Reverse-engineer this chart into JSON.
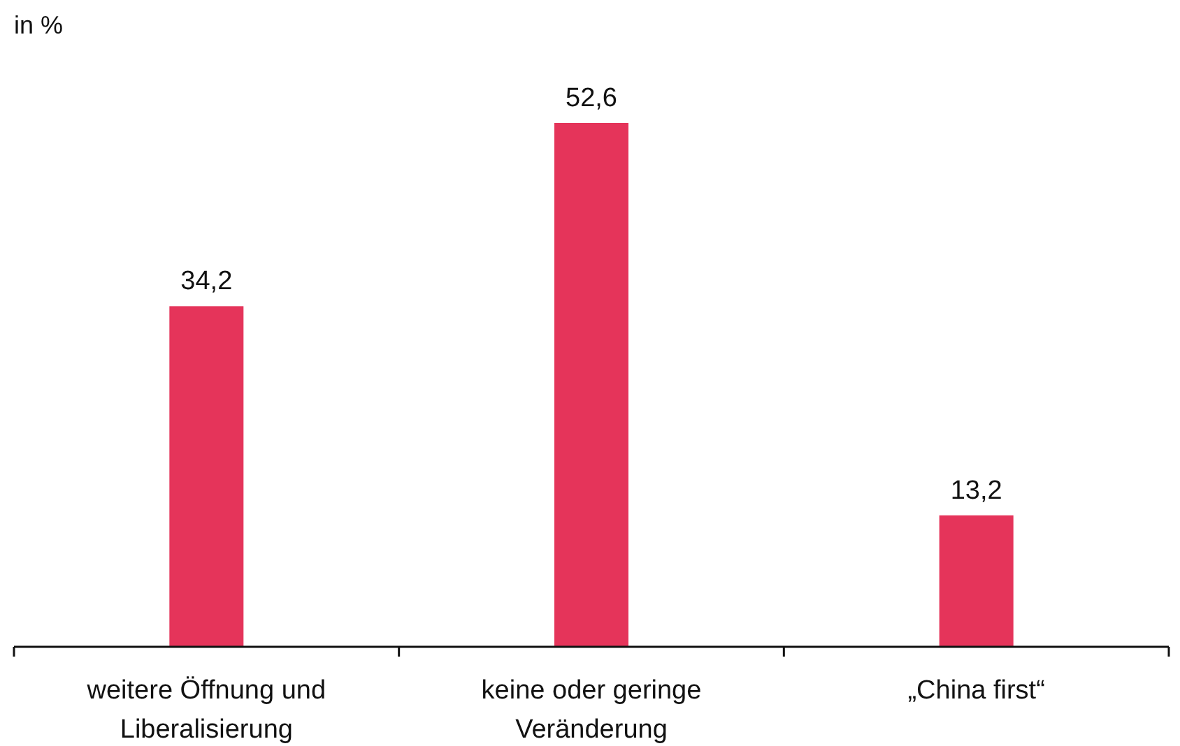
{
  "chart_data": {
    "type": "bar",
    "ylabel": "in %",
    "categories": [
      "weitere Öffnung und Liberalisierung",
      "keine oder geringe Veränderung",
      "„China first“"
    ],
    "values": [
      34.2,
      52.6,
      13.2
    ],
    "value_labels": [
      "34,2",
      "52,6",
      "13,2"
    ],
    "color": "#e5345a"
  }
}
